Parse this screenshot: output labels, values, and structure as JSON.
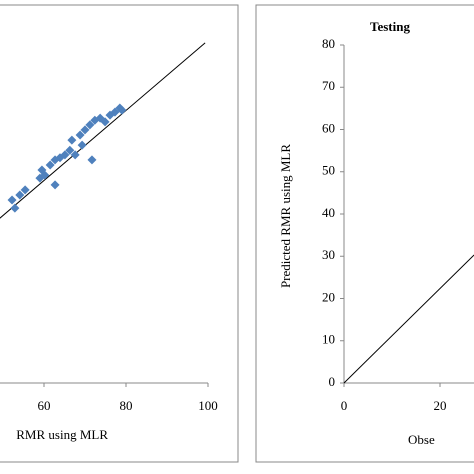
{
  "chart_data": [
    {
      "type": "scatter",
      "x_label": "RMR using MLR",
      "color": "#4f81bd",
      "x": [
        52.9,
        52.2,
        54.1,
        55.4,
        59.0,
        59.5,
        60.2,
        61.5,
        62.7,
        62.7,
        63.9,
        65.1,
        66.3,
        66.8,
        67.6,
        68.8,
        69.3,
        70.0,
        71.2,
        71.7,
        72.4,
        73.7,
        74.9,
        76.1,
        77.3,
        78.5,
        79.0
      ],
      "values": [
        41.4,
        43.3,
        44.5,
        45.7,
        48.5,
        50.4,
        49.2,
        51.6,
        52.8,
        46.9,
        53.3,
        54.0,
        55.1,
        57.5,
        54.0,
        58.7,
        56.3,
        59.9,
        61.1,
        52.8,
        62.2,
        62.7,
        61.8,
        63.4,
        64.1,
        65.1,
        64.6
      ],
      "line": {
        "x": [
          0,
          99.3
        ],
        "values": [
          -1.8,
          80.5
        ]
      },
      "xlim": [
        0,
        100
      ],
      "ylim": [
        0,
        80
      ],
      "xticks": [
        60,
        80,
        100
      ]
    },
    {
      "type": "line",
      "title": "Testing",
      "y_label": "Predicted RMR using MLR",
      "x_label": "Obse",
      "x": [
        0,
        27.1
      ],
      "values": [
        0,
        30.3
      ],
      "xlim": [
        0,
        100
      ],
      "ylim": [
        0,
        80
      ],
      "xticks": [
        0,
        20
      ],
      "yticks": [
        0,
        10,
        20,
        30,
        40,
        50,
        60,
        70,
        80
      ]
    }
  ]
}
